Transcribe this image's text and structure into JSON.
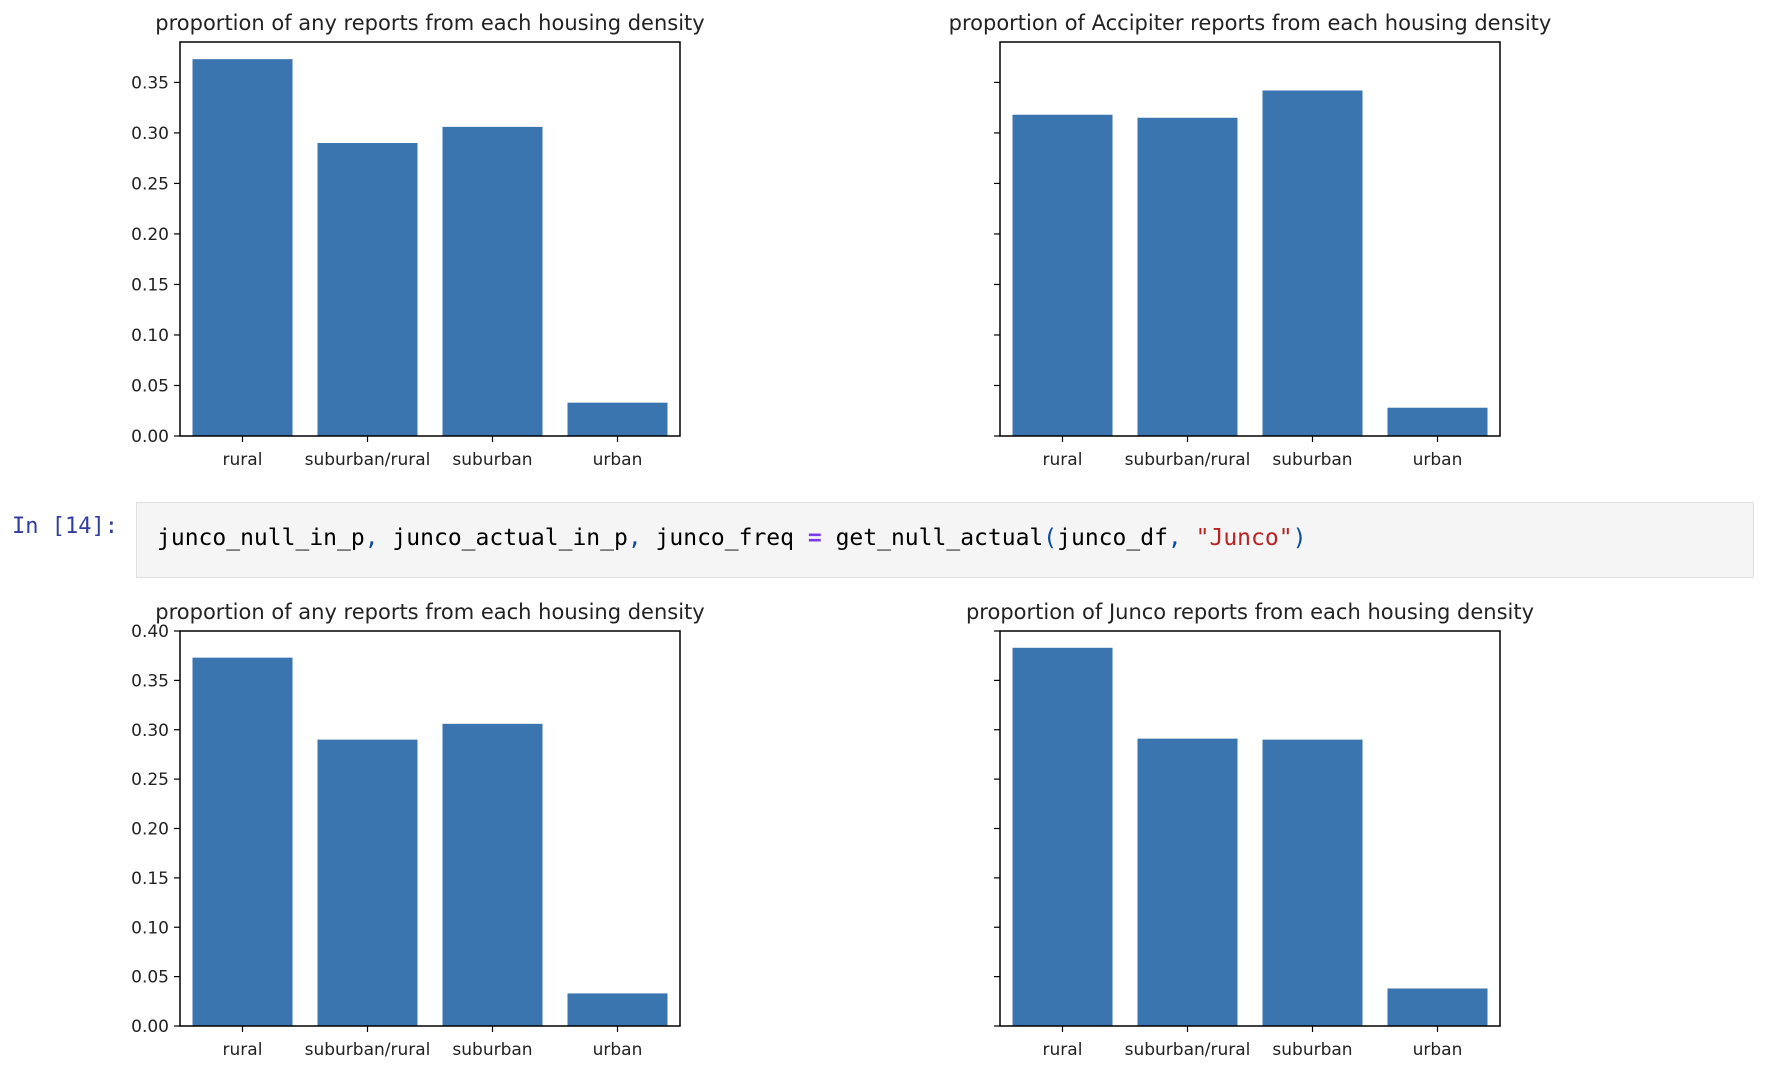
{
  "notebook": {
    "cell": {
      "prompt": "In [14]:",
      "code_tokens": [
        {
          "t": "junco_null_in_p",
          "c": "name"
        },
        {
          "t": ",",
          "c": "punc"
        },
        {
          "t": " junco_actual_in_p",
          "c": "name"
        },
        {
          "t": ",",
          "c": "punc"
        },
        {
          "t": " junco_freq ",
          "c": "name"
        },
        {
          "t": "=",
          "c": "op"
        },
        {
          "t": " get_null_actual",
          "c": "name"
        },
        {
          "t": "(",
          "c": "punc"
        },
        {
          "t": "junco_df",
          "c": "name"
        },
        {
          "t": ",",
          "c": "punc"
        },
        {
          "t": " ",
          "c": "name"
        },
        {
          "t": "\"Junco\"",
          "c": "str"
        },
        {
          "t": ")",
          "c": "punc"
        }
      ]
    }
  },
  "colors": {
    "bar": "#3a75b0",
    "axis": "#000000",
    "code_bg": "#f5f5f5"
  },
  "chart_data": [
    {
      "type": "bar",
      "title": "proportion of any reports from each housing density",
      "categories": [
        "rural",
        "suburban/rural",
        "suburban",
        "urban"
      ],
      "values": [
        0.373,
        0.29,
        0.306,
        0.033
      ],
      "ylim": [
        0,
        0.39
      ],
      "yticks": [
        "0.00",
        "0.05",
        "0.10",
        "0.15",
        "0.20",
        "0.25",
        "0.30",
        "0.35"
      ],
      "show_ytick_labels": true
    },
    {
      "type": "bar",
      "title": "proportion of Accipiter reports from each housing density",
      "categories": [
        "rural",
        "suburban/rural",
        "suburban",
        "urban"
      ],
      "values": [
        0.318,
        0.315,
        0.342,
        0.028
      ],
      "ylim": [
        0,
        0.39
      ],
      "yticks": [
        "0.00",
        "0.05",
        "0.10",
        "0.15",
        "0.20",
        "0.25",
        "0.30",
        "0.35"
      ],
      "show_ytick_labels": false
    },
    {
      "type": "bar",
      "title": "proportion of any reports from each housing density",
      "categories": [
        "rural",
        "suburban/rural",
        "suburban",
        "urban"
      ],
      "values": [
        0.373,
        0.29,
        0.306,
        0.033
      ],
      "ylim": [
        0,
        0.4
      ],
      "yticks": [
        "0.00",
        "0.05",
        "0.10",
        "0.15",
        "0.20",
        "0.25",
        "0.30",
        "0.35",
        "0.40"
      ],
      "show_ytick_labels": true
    },
    {
      "type": "bar",
      "title": "proportion of Junco reports from each housing density",
      "categories": [
        "rural",
        "suburban/rural",
        "suburban",
        "urban"
      ],
      "values": [
        0.383,
        0.291,
        0.29,
        0.038
      ],
      "ylim": [
        0,
        0.4
      ],
      "yticks": [
        "0.00",
        "0.05",
        "0.10",
        "0.15",
        "0.20",
        "0.25",
        "0.30",
        "0.35",
        "0.40"
      ],
      "show_ytick_labels": false
    }
  ]
}
